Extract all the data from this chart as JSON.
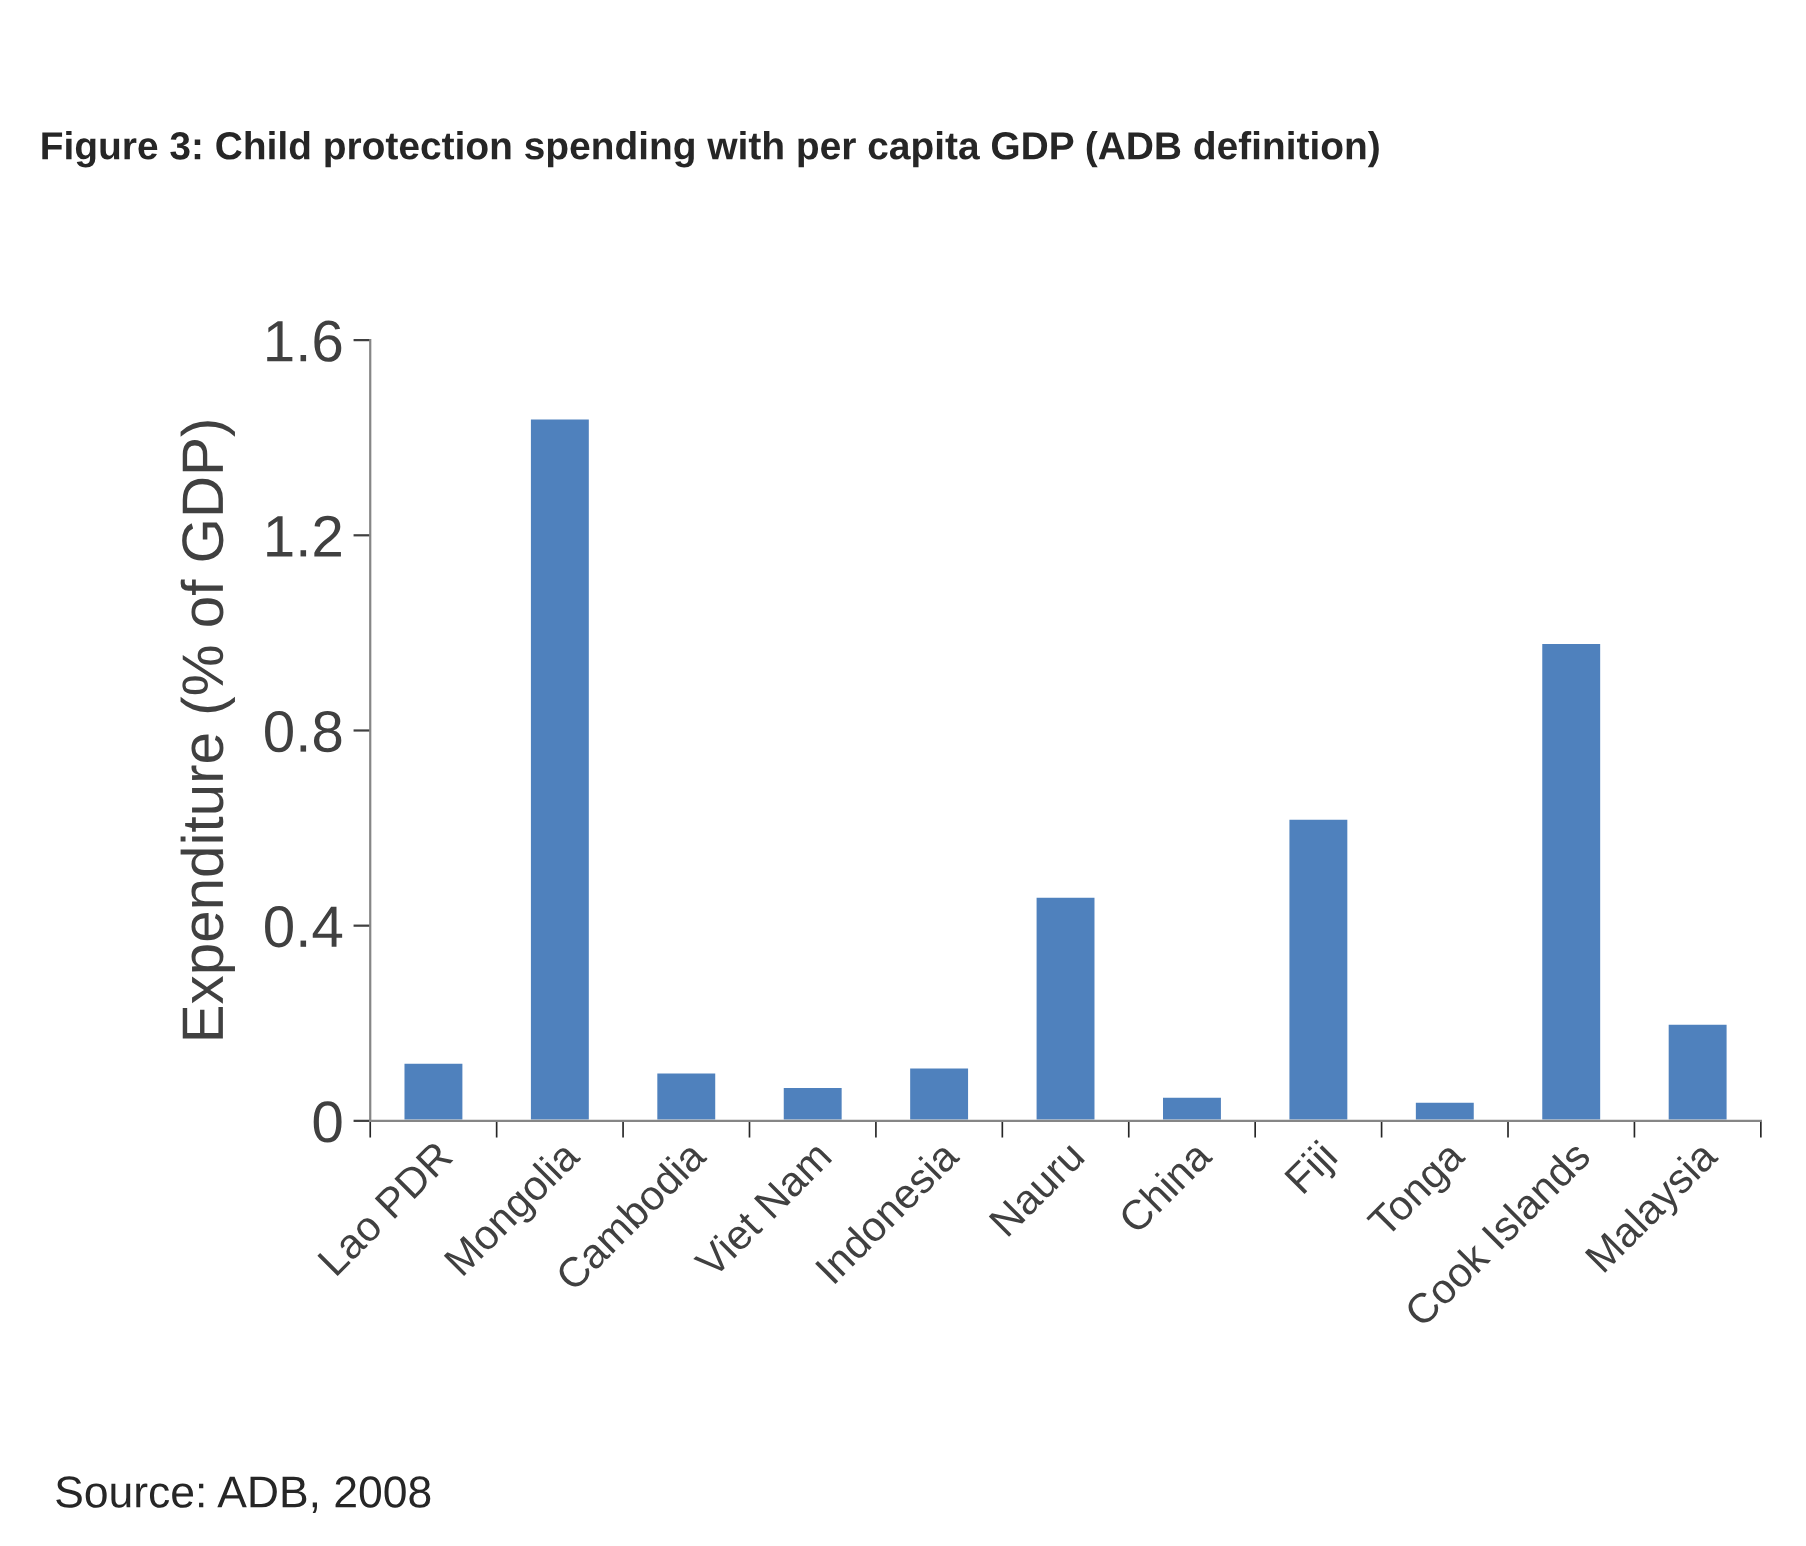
{
  "chart_data": {
    "type": "bar",
    "title": "Figure 3: Child protection spending with per capita GDP (ADB definition)",
    "ylabel": "Expenditure (% of GDP)",
    "categories": [
      "Lao PDR",
      "Mongolia",
      "Cambodia",
      "Viet Nam",
      "Indonesia",
      "Nauru",
      "China",
      "Fiji",
      "Tonga",
      "Cook Islands",
      "Malaysia"
    ],
    "values": [
      0.12,
      1.44,
      0.1,
      0.07,
      0.11,
      0.46,
      0.05,
      0.62,
      0.04,
      0.98,
      0.2
    ],
    "color": "#4f81bd",
    "ylim": [
      0,
      1.6
    ],
    "yticks": [
      {
        "value": 0,
        "label": "0"
      },
      0.4,
      0.8,
      1.2,
      1.6
    ],
    "grid": false,
    "annotations": [
      "Source: ADB, 2008"
    ]
  }
}
